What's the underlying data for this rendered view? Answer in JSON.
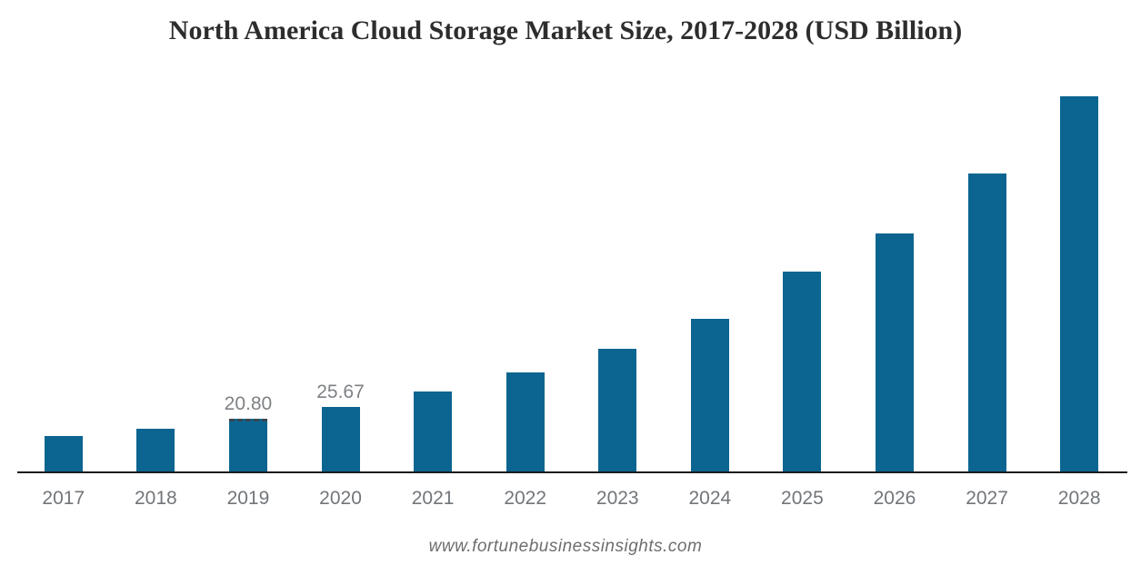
{
  "chart_data": {
    "type": "bar",
    "title": "North America Cloud Storage Market Size, 2017-2028 (USD Billion)",
    "unit": "USD Billion",
    "categories": [
      "2017",
      "2018",
      "2019",
      "2020",
      "2021",
      "2022",
      "2023",
      "2024",
      "2025",
      "2026",
      "2027",
      "2028"
    ],
    "values": [
      14.1,
      17.0,
      20.8,
      25.67,
      31.9,
      39.5,
      48.9,
      60.7,
      79.4,
      94.6,
      118.6,
      149.3
    ],
    "value_labels": [
      "",
      "",
      "20.80",
      "25.67",
      "",
      "",
      "",
      "",
      "",
      "",
      "",
      ""
    ],
    "dashed_top_bar_index": 2,
    "bar_color": "#0b6590",
    "axis_color": "#1c1c1c",
    "tick_label_color": "#72767a",
    "value_label_color": "#7e8285",
    "title_color": "#2d2d2d",
    "xlabel": "",
    "ylabel": "",
    "ylim": [
      0,
      165
    ],
    "grid": false,
    "legend": false
  },
  "watermark": {
    "text": "www.fortunebusinessinsights.com",
    "color": "#6e6e6e"
  }
}
